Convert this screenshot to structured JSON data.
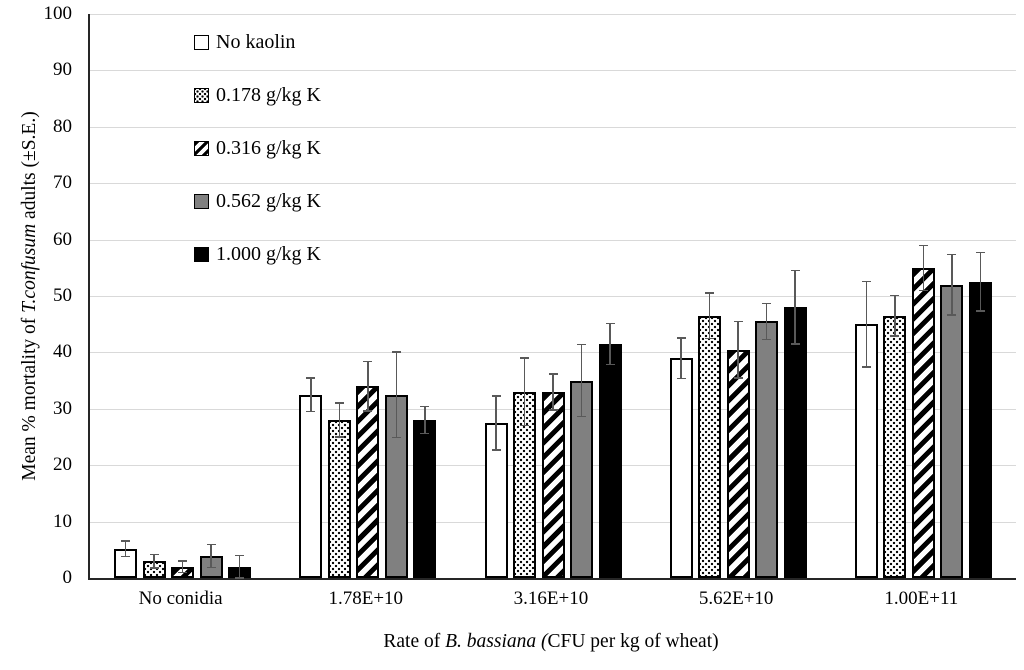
{
  "chart_data": {
    "type": "bar",
    "title": "",
    "ylabel": "Mean % mortality of T.confusum adults (±S.E.)",
    "ylabel_parts": [
      {
        "text": "Mean % mortality of ",
        "italic": false
      },
      {
        "text": "T.confusum",
        "italic": true
      },
      {
        "text": " adults (±S.E.)",
        "italic": false
      }
    ],
    "xlabel": "Rate of B. bassiana (CFU per kg of wheat)",
    "xlabel_parts": [
      {
        "text": "Rate of ",
        "italic": false
      },
      {
        "text": "B. bassiana (",
        "italic": true
      },
      {
        "text": "CFU per kg of wheat)",
        "italic": false
      }
    ],
    "categories": [
      "No conidia",
      "1.78E+10",
      "3.16E+10",
      "5.62E+10",
      "1.00E+11"
    ],
    "series": [
      {
        "name": "No kaolin",
        "pattern": "plain",
        "values": [
          5.2,
          32.5,
          27.5,
          39.0,
          45.0
        ],
        "errors": [
          1.4,
          3.0,
          4.8,
          3.6,
          7.6
        ]
      },
      {
        "name": "0.178 g/kg K",
        "pattern": "dots",
        "values": [
          3.0,
          28.0,
          33.0,
          46.5,
          46.5
        ],
        "errors": [
          1.2,
          3.0,
          6.0,
          4.0,
          3.6
        ]
      },
      {
        "name": "0.316 g/kg K",
        "pattern": "hatch",
        "values": [
          2.0,
          34.0,
          33.0,
          40.5,
          55.0
        ],
        "errors": [
          1.0,
          4.4,
          3.2,
          5.0,
          4.0
        ]
      },
      {
        "name": "0.562 g/kg K",
        "pattern": "gray",
        "values": [
          3.9,
          32.5,
          35.0,
          45.5,
          52.0
        ],
        "errors": [
          2.0,
          7.6,
          6.4,
          3.2,
          5.4
        ]
      },
      {
        "name": "1.000 g/kg K",
        "pattern": "black",
        "values": [
          2.0,
          28.0,
          41.5,
          48.0,
          52.5
        ],
        "errors": [
          2.0,
          2.4,
          3.6,
          6.5,
          5.2
        ]
      }
    ],
    "ylim": [
      0,
      100
    ],
    "yticks": [
      0,
      10,
      20,
      30,
      40,
      50,
      60,
      70,
      80,
      90,
      100
    ],
    "grid": "horizontal-only",
    "legend_position": "inside-top-left",
    "colors": {
      "background": "#ffffff",
      "gridline": "#d9d9d9",
      "axis": "#262626",
      "error_bar": "#595959",
      "gray_fill": "#808080",
      "black_fill": "#000000"
    }
  }
}
